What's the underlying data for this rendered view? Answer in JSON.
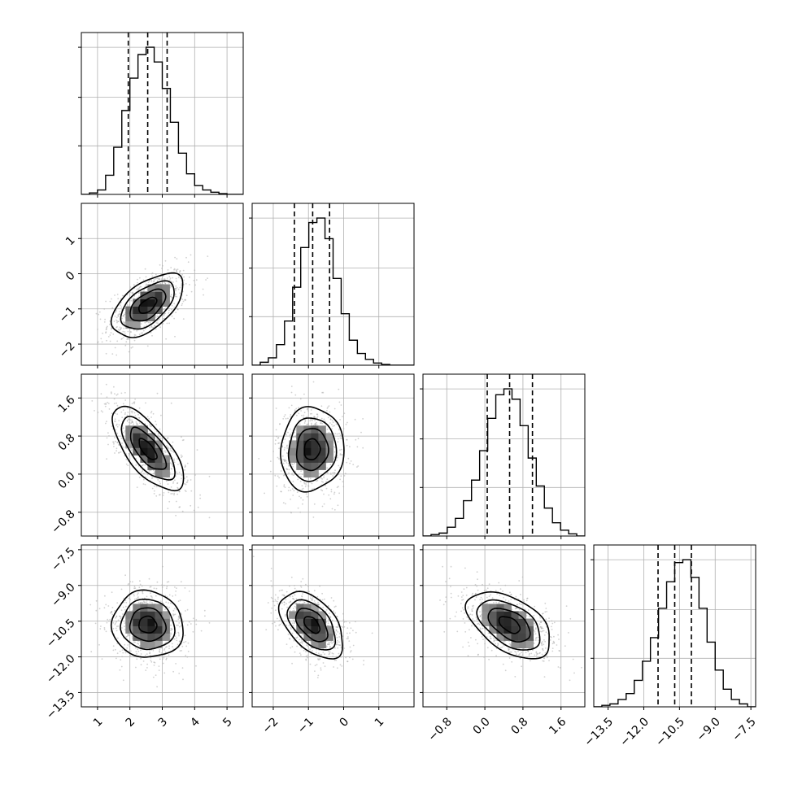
{
  "chart_data": {
    "type": "corner",
    "parameters": [
      {
        "range": [
          0.5,
          5.5
        ],
        "ticks": [
          1,
          2,
          3,
          4,
          5
        ],
        "tick_labels": [
          "1",
          "2",
          "3",
          "4",
          "5"
        ],
        "hist_peak_ticks": [
          0.33,
          0.66,
          1.0
        ],
        "quantiles": [
          1.95,
          2.55,
          3.15
        ],
        "hist_bins": [
          0.5,
          0.75,
          1.0,
          1.25,
          1.5,
          1.75,
          2.0,
          2.25,
          2.5,
          2.75,
          3.0,
          3.25,
          3.5,
          3.75,
          4.0,
          4.25,
          4.5,
          4.75,
          5.0,
          5.25,
          5.5
        ],
        "hist_counts": [
          0.0,
          0.01,
          0.03,
          0.13,
          0.32,
          0.57,
          0.79,
          0.95,
          1.0,
          0.9,
          0.72,
          0.49,
          0.28,
          0.14,
          0.06,
          0.03,
          0.015,
          0.005,
          0.0,
          0.0
        ]
      },
      {
        "range": [
          -2.6,
          2.0
        ],
        "ticks": [
          -2,
          -1,
          0,
          1
        ],
        "tick_labels": [
          "−2",
          "−1",
          "0",
          "1"
        ],
        "hist_peak_ticks": [
          0.33,
          0.66,
          1.0
        ],
        "quantiles": [
          -1.4,
          -0.88,
          -0.4
        ],
        "hist_bins": [
          -2.6,
          -2.37,
          -2.14,
          -1.91,
          -1.68,
          -1.45,
          -1.22,
          -0.99,
          -0.76,
          -0.53,
          -0.3,
          -0.07,
          0.16,
          0.39,
          0.62,
          0.85,
          1.08,
          1.31,
          1.54,
          1.77,
          2.0
        ],
        "hist_counts": [
          0.0,
          0.02,
          0.05,
          0.14,
          0.3,
          0.53,
          0.8,
          0.97,
          1.0,
          0.86,
          0.59,
          0.35,
          0.17,
          0.08,
          0.04,
          0.015,
          0.005,
          0.0,
          0.0,
          0.0
        ]
      },
      {
        "range": [
          -1.3,
          2.1
        ],
        "ticks": [
          -0.8,
          0.0,
          0.8,
          1.6
        ],
        "tick_labels": [
          "−0.8",
          "0.0",
          "0.8",
          "1.6"
        ],
        "hist_peak_ticks": [
          0.33,
          0.66,
          1.0
        ],
        "quantiles": [
          0.05,
          0.52,
          1.0
        ],
        "hist_bins": [
          -1.3,
          -1.13,
          -0.96,
          -0.79,
          -0.62,
          -0.45,
          -0.28,
          -0.11,
          0.06,
          0.23,
          0.4,
          0.57,
          0.74,
          0.91,
          1.08,
          1.25,
          1.42,
          1.59,
          1.76,
          1.93,
          2.1
        ],
        "hist_counts": [
          0.0,
          0.01,
          0.02,
          0.06,
          0.12,
          0.24,
          0.38,
          0.58,
          0.8,
          0.96,
          1.0,
          0.93,
          0.75,
          0.53,
          0.34,
          0.19,
          0.09,
          0.04,
          0.015,
          0.0
        ]
      },
      {
        "range": [
          -14.1,
          -7.3
        ],
        "ticks": [
          -13.5,
          -12.0,
          -10.5,
          -9.0,
          -7.5
        ],
        "tick_labels": [
          "−13.5",
          "−12.0",
          "−10.5",
          "−9.0",
          "−7.5"
        ],
        "hist_peak_ticks": [
          0.33,
          0.66,
          1.0
        ],
        "quantiles": [
          -11.4,
          -10.7,
          -10.0
        ],
        "hist_bins": [
          -14.1,
          -13.76,
          -13.42,
          -13.08,
          -12.74,
          -12.4,
          -12.06,
          -11.72,
          -11.38,
          -11.04,
          -10.7,
          -10.36,
          -10.02,
          -9.68,
          -9.34,
          -9.0,
          -8.66,
          -8.32,
          -7.98,
          -7.64,
          -7.3
        ],
        "hist_counts": [
          0.0,
          0.01,
          0.02,
          0.05,
          0.09,
          0.18,
          0.31,
          0.47,
          0.67,
          0.85,
          0.98,
          1.0,
          0.88,
          0.67,
          0.44,
          0.25,
          0.12,
          0.05,
          0.02,
          0.0
        ]
      }
    ],
    "pairs": [
      {
        "row": 1,
        "col": 0,
        "mean": [
          2.55,
          -0.9
        ],
        "std": [
          0.55,
          0.45
        ],
        "rho": 0.55
      },
      {
        "row": 2,
        "col": 0,
        "mean": [
          2.55,
          0.52
        ],
        "std": [
          0.55,
          0.44
        ],
        "rho": -0.7
      },
      {
        "row": 2,
        "col": 1,
        "mean": [
          -0.9,
          0.52
        ],
        "std": [
          0.45,
          0.44
        ],
        "rho": 0.05
      },
      {
        "row": 3,
        "col": 0,
        "mean": [
          2.55,
          -10.65
        ],
        "std": [
          0.55,
          0.7
        ],
        "rho": -0.05
      },
      {
        "row": 3,
        "col": 1,
        "mean": [
          -0.9,
          -10.65
        ],
        "std": [
          0.45,
          0.7
        ],
        "rho": -0.5
      },
      {
        "row": 3,
        "col": 2,
        "mean": [
          0.52,
          -10.65
        ],
        "std": [
          0.44,
          0.7
        ],
        "rho": -0.5
      }
    ],
    "contour_levels_sigma": [
      0.5,
      1.0,
      1.5,
      2.0
    ],
    "grid": true,
    "colors": {
      "line": "#000000",
      "grid": "#b0b0b0",
      "points": "#9a9a9a"
    }
  }
}
